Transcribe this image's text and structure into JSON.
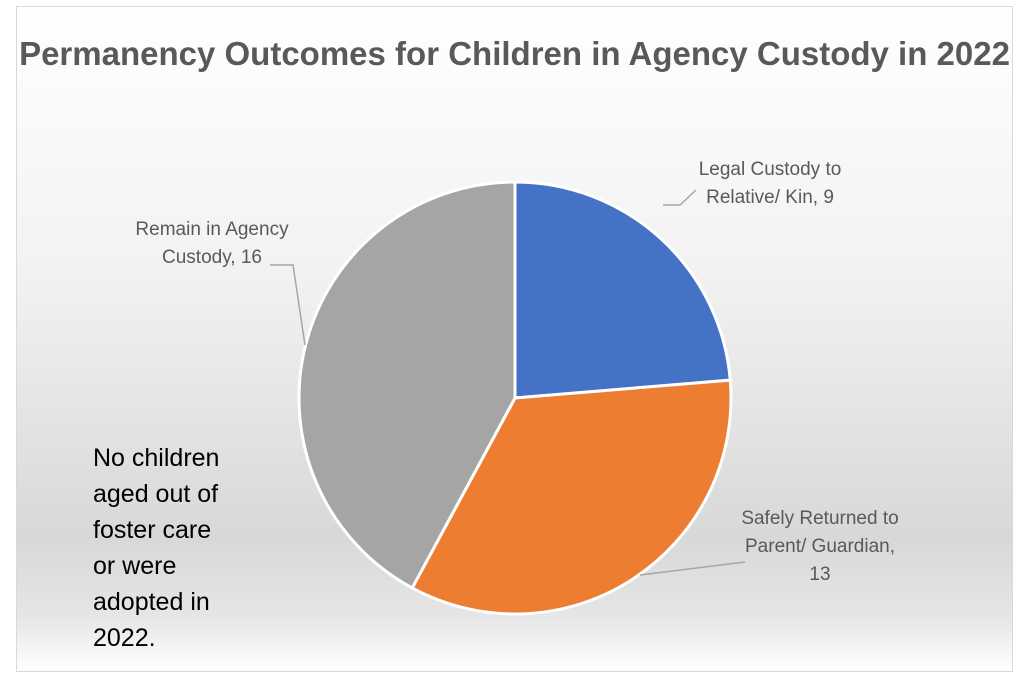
{
  "chart_data": {
    "type": "pie",
    "title": "Permanency Outcomes for Children in Agency Custody in 2022",
    "slices": [
      {
        "label": "Legal Custody to Relative/ Kin",
        "value": 9,
        "color": "#4472c4",
        "label_lines": [
          "Legal Custody to",
          "Relative/ Kin, 9"
        ]
      },
      {
        "label": "Safely Returned to Parent/ Guardian",
        "value": 13,
        "color": "#ed7d31",
        "label_lines": [
          "Safely Returned to",
          "Parent/ Guardian,",
          "13"
        ]
      },
      {
        "label": "Remain in Agency Custody",
        "value": 16,
        "color": "#a5a5a5",
        "label_lines": [
          "Remain in Agency",
          "Custody, 16"
        ]
      }
    ],
    "start_angle_deg": 0,
    "direction": "clockwise",
    "annotation": "No children\naged out of\nfoster care\nor were\nadopted in\n2022."
  }
}
